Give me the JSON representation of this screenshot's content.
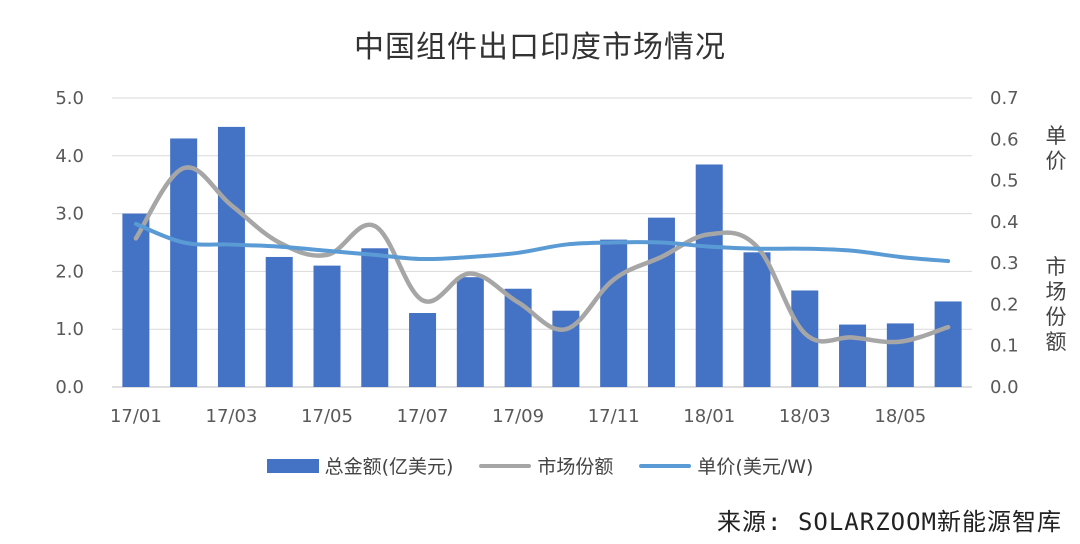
{
  "chart_data": {
    "type": "bar",
    "title": "中国组件出口印度市场情况",
    "categories": [
      "17/01",
      "17/02",
      "17/03",
      "17/04",
      "17/05",
      "17/06",
      "17/07",
      "17/08",
      "17/09",
      "17/10",
      "17/11",
      "17/12",
      "18/01",
      "18/02",
      "18/03",
      "18/04",
      "18/05",
      "18/06"
    ],
    "x_tick_labels": [
      "17/01",
      "17/03",
      "17/05",
      "17/07",
      "17/09",
      "17/11",
      "18/01",
      "18/03",
      "18/05"
    ],
    "left_axis": {
      "ylim": [
        0,
        5
      ],
      "ticks": [
        "0.0",
        "1.0",
        "2.0",
        "3.0",
        "4.0",
        "5.0"
      ]
    },
    "right_axis": {
      "ylim": [
        0,
        0.7
      ],
      "ticks": [
        "0.0",
        "0.1",
        "0.2",
        "0.3",
        "0.4",
        "0.5",
        "0.6",
        "0.7"
      ],
      "label_top": "单价",
      "label_bottom": "市场份额"
    },
    "grid": true,
    "legend_position": "bottom",
    "series": [
      {
        "name": "总金额(亿美元)",
        "type": "bar",
        "axis": "left",
        "color": "#4472C4",
        "values": [
          3.0,
          4.3,
          4.5,
          2.25,
          2.1,
          2.4,
          1.28,
          1.9,
          1.7,
          1.32,
          2.55,
          2.93,
          3.85,
          2.33,
          1.67,
          1.08,
          1.1,
          1.48
        ]
      },
      {
        "name": "市场份额",
        "type": "line",
        "axis": "right",
        "color": "#A6A6A6",
        "smooth": true,
        "values": [
          0.36,
          0.53,
          0.44,
          0.35,
          0.32,
          0.39,
          0.21,
          0.275,
          0.205,
          0.14,
          0.26,
          0.315,
          0.37,
          0.34,
          0.13,
          0.12,
          0.11,
          0.145
        ]
      },
      {
        "name": "单价(美元/W)",
        "type": "line",
        "axis": "right",
        "color": "#5B9BD5",
        "smooth": true,
        "values": [
          0.395,
          0.35,
          0.345,
          0.34,
          0.33,
          0.32,
          0.31,
          0.315,
          0.325,
          0.345,
          0.35,
          0.35,
          0.34,
          0.335,
          0.335,
          0.33,
          0.315,
          0.305
        ]
      }
    ]
  },
  "source_text": "来源: SOLARZOOM新能源智库"
}
